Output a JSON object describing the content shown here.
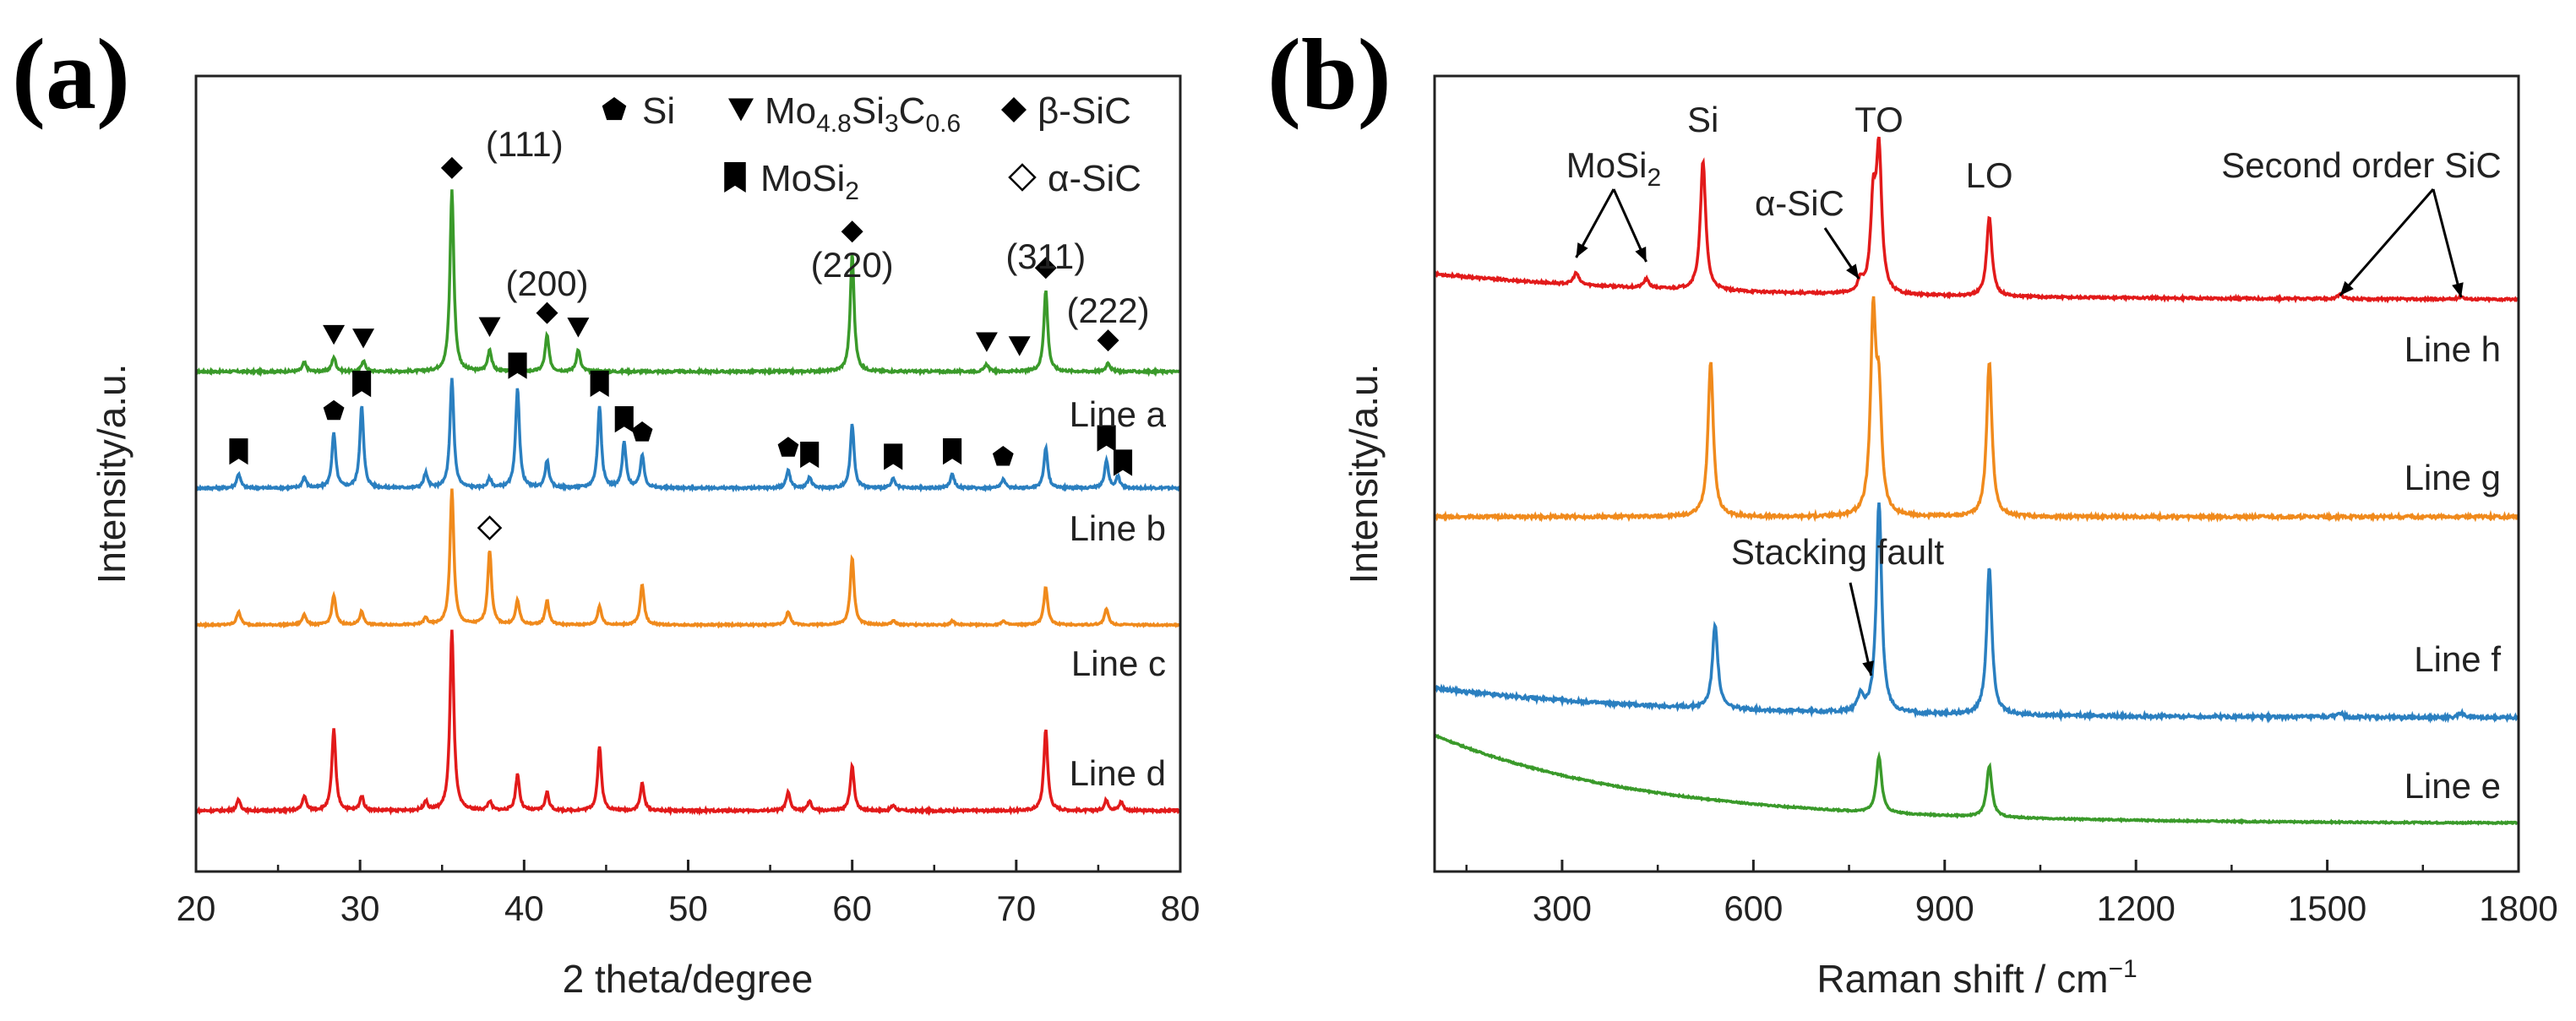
{
  "chart_data": [
    {
      "type": "line",
      "panel": "(a)",
      "xlabel": "2 theta/degree",
      "ylabel": "Intensity/a.u.",
      "xlim": [
        20,
        80
      ],
      "xticks": [
        20,
        30,
        40,
        50,
        60,
        70,
        80
      ],
      "legend": [
        {
          "symbol": "pentagon",
          "label": "Si"
        },
        {
          "symbol": "down-triangle",
          "label": "Mo",
          "sub1": "4.8",
          "mid": "Si",
          "sub2": "3",
          "mid2": "C",
          "sub3": "0.6"
        },
        {
          "symbol": "diamond",
          "label": "β-SiC"
        },
        {
          "symbol": "bookmark",
          "label": "MoSi",
          "sub1": "2"
        },
        {
          "symbol": "open-diamond",
          "label": "α-SiC"
        }
      ],
      "plane_labels": [
        {
          "x": 35.6,
          "text": "(111)"
        },
        {
          "x": 41.4,
          "text": "(200)"
        },
        {
          "x": 60.0,
          "text": "(220)"
        },
        {
          "x": 71.8,
          "text": "(311)"
        },
        {
          "x": 75.6,
          "text": "(222)"
        }
      ],
      "series": [
        {
          "name": "Line a",
          "color": "#3a9a2a",
          "peaks": [
            [
              26.6,
              0.05
            ],
            [
              28.4,
              0.08
            ],
            [
              30.2,
              0.06
            ],
            [
              35.6,
              1.0
            ],
            [
              37.9,
              0.12
            ],
            [
              41.4,
              0.2
            ],
            [
              43.3,
              0.12
            ],
            [
              60.0,
              0.65
            ],
            [
              68.2,
              0.04
            ],
            [
              71.8,
              0.45
            ],
            [
              75.6,
              0.05
            ]
          ]
        },
        {
          "name": "Line b",
          "color": "#2a7fc0",
          "peaks": [
            [
              22.6,
              0.08
            ],
            [
              26.6,
              0.06
            ],
            [
              28.4,
              0.3
            ],
            [
              30.1,
              0.45
            ],
            [
              34.0,
              0.08
            ],
            [
              35.6,
              0.6
            ],
            [
              37.9,
              0.05
            ],
            [
              39.6,
              0.55
            ],
            [
              41.4,
              0.15
            ],
            [
              44.6,
              0.45
            ],
            [
              46.1,
              0.25
            ],
            [
              47.2,
              0.18
            ],
            [
              56.1,
              0.1
            ],
            [
              57.4,
              0.06
            ],
            [
              60.0,
              0.35
            ],
            [
              62.5,
              0.05
            ],
            [
              66.1,
              0.08
            ],
            [
              69.2,
              0.05
            ],
            [
              71.8,
              0.22
            ],
            [
              75.5,
              0.15
            ],
            [
              76.2,
              0.06
            ]
          ]
        },
        {
          "name": "Line c",
          "color": "#f08a1c",
          "peaks": [
            [
              22.6,
              0.1
            ],
            [
              26.6,
              0.08
            ],
            [
              28.4,
              0.22
            ],
            [
              30.1,
              0.1
            ],
            [
              34.0,
              0.05
            ],
            [
              35.6,
              1.0
            ],
            [
              37.9,
              0.55
            ],
            [
              39.6,
              0.18
            ],
            [
              41.4,
              0.18
            ],
            [
              44.6,
              0.14
            ],
            [
              47.2,
              0.3
            ],
            [
              56.1,
              0.1
            ],
            [
              60.0,
              0.5
            ],
            [
              62.5,
              0.03
            ],
            [
              66.1,
              0.03
            ],
            [
              69.2,
              0.03
            ],
            [
              71.8,
              0.28
            ],
            [
              75.5,
              0.12
            ]
          ]
        },
        {
          "name": "Line d",
          "color": "#e21a1a",
          "peaks": [
            [
              22.6,
              0.06
            ],
            [
              26.6,
              0.08
            ],
            [
              28.4,
              0.45
            ],
            [
              30.1,
              0.08
            ],
            [
              34.0,
              0.05
            ],
            [
              35.6,
              1.0
            ],
            [
              37.9,
              0.05
            ],
            [
              39.6,
              0.2
            ],
            [
              41.4,
              0.1
            ],
            [
              44.6,
              0.35
            ],
            [
              47.2,
              0.15
            ],
            [
              56.1,
              0.1
            ],
            [
              57.4,
              0.05
            ],
            [
              60.0,
              0.25
            ],
            [
              62.5,
              0.03
            ],
            [
              71.8,
              0.45
            ],
            [
              75.5,
              0.06
            ],
            [
              76.4,
              0.05
            ]
          ]
        }
      ],
      "markers": [
        {
          "series": "Line a",
          "symbol": "down-triangle",
          "x": [
            28.4,
            30.2,
            37.9,
            43.3,
            68.2,
            70.2
          ]
        },
        {
          "series": "Line a",
          "symbol": "diamond",
          "x": [
            35.6,
            41.4,
            60.0,
            71.8,
            75.6
          ]
        },
        {
          "series": "Line b",
          "symbol": "bookmark",
          "x": [
            22.6,
            30.1,
            39.6,
            44.6,
            46.1,
            57.4,
            62.5,
            66.1,
            75.5,
            76.5
          ]
        },
        {
          "series": "Line b",
          "symbol": "pentagon",
          "x": [
            28.4,
            47.2,
            56.1,
            69.2
          ]
        },
        {
          "series": "Line c",
          "symbol": "open-diamond",
          "x": [
            37.9
          ]
        }
      ]
    },
    {
      "type": "line",
      "panel": "(b)",
      "xlabel": "Raman shift / cm",
      "xlabel_sup": "−1",
      "ylabel": "Intensity/a.u.",
      "xlim": [
        100,
        1800
      ],
      "xticks": [
        300,
        600,
        900,
        1200,
        1500,
        1800
      ],
      "series": [
        {
          "name": "Line h",
          "color": "#e21a1a",
          "peaks": [
            [
              322,
              0.08
            ],
            [
              432,
              0.06
            ],
            [
              521,
              0.9
            ],
            [
              768,
              0.08
            ],
            [
              788,
              0.6
            ],
            [
              797,
              0.95
            ],
            [
              970,
              0.55
            ],
            [
              1520,
              0.03
            ],
            [
              1710,
              0.02
            ]
          ]
        },
        {
          "name": "Line g",
          "color": "#f08a1c",
          "peaks": [
            [
              533,
              0.8
            ],
            [
              788,
              1.0
            ],
            [
              797,
              0.55
            ],
            [
              970,
              0.8
            ]
          ]
        },
        {
          "name": "Line f",
          "color": "#2a7fc0",
          "peaks": [
            [
              540,
              0.4
            ],
            [
              768,
              0.08
            ],
            [
              797,
              1.0
            ],
            [
              970,
              0.7
            ],
            [
              1520,
              0.02
            ],
            [
              1710,
              0.02
            ]
          ]
        },
        {
          "name": "Line e",
          "color": "#3a9a2a",
          "peaks": [
            [
              797,
              0.6
            ],
            [
              970,
              0.55
            ]
          ]
        }
      ],
      "annotations": [
        {
          "text": "MoSi",
          "sub": "2",
          "targets": [
            322,
            432
          ]
        },
        {
          "text": "Si",
          "target": 521
        },
        {
          "text": "TO",
          "target": 797
        },
        {
          "text": "α-SiC",
          "target": 768
        },
        {
          "text": "LO",
          "target": 970
        },
        {
          "text": "Second order SiC",
          "targets": [
            1520,
            1710
          ]
        },
        {
          "text": "Stacking fault",
          "target": 790
        }
      ]
    }
  ]
}
